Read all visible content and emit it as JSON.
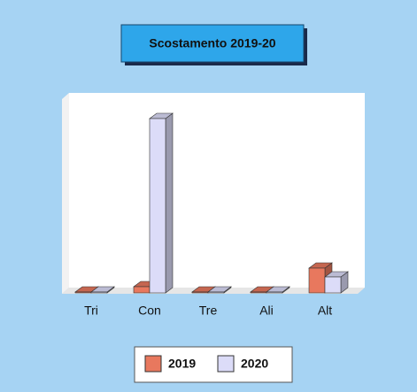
{
  "chart_data": {
    "type": "bar3d",
    "title": "Scostamento 2019-20",
    "categories": [
      "Tri",
      "Con",
      "Tre",
      "Ali",
      "Alt"
    ],
    "series": [
      {
        "name": "2019",
        "color": "#e8785e",
        "values": [
          1,
          7,
          1,
          1,
          28
        ]
      },
      {
        "name": "2020",
        "color": "#dcdcf8",
        "values": [
          1,
          197,
          1,
          1,
          18
        ]
      }
    ],
    "ylim": [
      0,
      220
    ],
    "legend": "bottom"
  }
}
